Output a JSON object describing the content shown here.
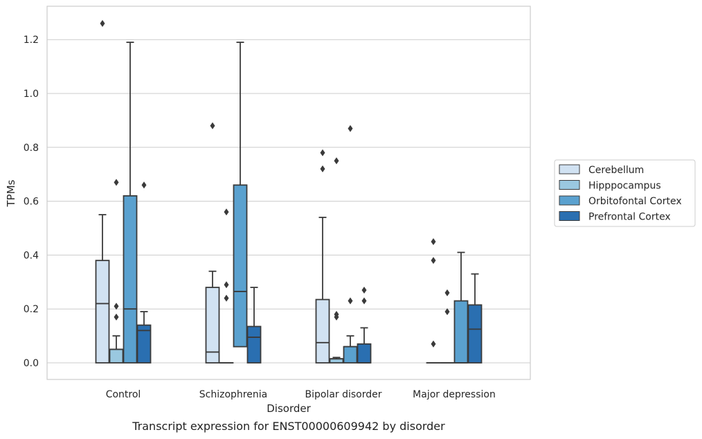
{
  "caption": "Transcript expression for ENST00000609942 by disorder",
  "colors": {
    "Cerebellum": "#d1e2f2",
    "Hipppocampus": "#9ac8e0",
    "Orbitofontal Cortex": "#5aa1cf",
    "Prefrontal Cortex": "#2a6fb1",
    "line": "#3a3a3a",
    "grid": "#cccccc",
    "frame": "#cccccc"
  },
  "chart_data": {
    "type": "box",
    "xlabel": "Disorder",
    "ylabel": "TPMs",
    "ylim": [
      -0.06,
      1.32
    ],
    "yticks": [
      0.0,
      0.2,
      0.4,
      0.6,
      0.8,
      1.0,
      1.2
    ],
    "ytick_labels": [
      "0.0",
      "0.2",
      "0.4",
      "0.6",
      "0.8",
      "1.0",
      "1.2"
    ],
    "grid": "horizontal",
    "legend_placement": "right-outside",
    "categories": [
      "Control",
      "Schizophrenia",
      "Bipolar disorder",
      "Major depression"
    ],
    "series": [
      {
        "name": "Cerebellum",
        "boxes": [
          {
            "whislo": 0.0,
            "q1": 0.0,
            "med": 0.22,
            "q3": 0.38,
            "whishi": 0.55,
            "fliers": [
              1.26
            ]
          },
          {
            "whislo": 0.0,
            "q1": 0.0,
            "med": 0.04,
            "q3": 0.28,
            "whishi": 0.34,
            "fliers": [
              0.88
            ]
          },
          {
            "whislo": 0.0,
            "q1": 0.0,
            "med": 0.075,
            "q3": 0.235,
            "whishi": 0.54,
            "fliers": [
              0.72,
              0.78
            ]
          },
          {
            "whislo": 0.0,
            "q1": 0.0,
            "med": 0.0,
            "q3": 0.0,
            "whishi": 0.0,
            "fliers": [
              0.07,
              0.38,
              0.45
            ]
          }
        ]
      },
      {
        "name": "Hipppocampus",
        "boxes": [
          {
            "whislo": 0.0,
            "q1": 0.0,
            "med": 0.05,
            "q3": 0.05,
            "whishi": 0.1,
            "fliers": [
              0.17,
              0.21,
              0.67
            ]
          },
          {
            "whislo": 0.0,
            "q1": 0.0,
            "med": 0.0,
            "q3": 0.0,
            "whishi": 0.0,
            "fliers": [
              0.24,
              0.29,
              0.56
            ]
          },
          {
            "whislo": 0.0,
            "q1": 0.0,
            "med": 0.015,
            "q3": 0.015,
            "whishi": 0.02,
            "fliers": [
              0.17,
              0.18,
              0.75
            ]
          },
          {
            "whislo": 0.0,
            "q1": 0.0,
            "med": 0.0,
            "q3": 0.0,
            "whishi": 0.0,
            "fliers": [
              0.19,
              0.26
            ]
          }
        ]
      },
      {
        "name": "Orbitofontal Cortex",
        "boxes": [
          {
            "whislo": 0.0,
            "q1": 0.0,
            "med": 0.2,
            "q3": 0.62,
            "whishi": 1.19,
            "fliers": []
          },
          {
            "whislo": 0.0,
            "q1": 0.06,
            "med": 0.265,
            "q3": 0.66,
            "whishi": 1.19,
            "fliers": []
          },
          {
            "whislo": 0.0,
            "q1": 0.0,
            "med": 0.06,
            "q3": 0.06,
            "whishi": 0.1,
            "fliers": [
              0.23,
              0.87
            ]
          },
          {
            "whislo": 0.0,
            "q1": 0.0,
            "med": 0.0,
            "q3": 0.23,
            "whishi": 0.41,
            "fliers": []
          }
        ]
      },
      {
        "name": "Prefrontal Cortex",
        "boxes": [
          {
            "whislo": 0.0,
            "q1": 0.0,
            "med": 0.12,
            "q3": 0.14,
            "whishi": 0.19,
            "fliers": [
              0.66
            ]
          },
          {
            "whislo": 0.0,
            "q1": 0.0,
            "med": 0.095,
            "q3": 0.135,
            "whishi": 0.28,
            "fliers": []
          },
          {
            "whislo": 0.0,
            "q1": 0.0,
            "med": 0.0,
            "q3": 0.07,
            "whishi": 0.13,
            "fliers": [
              0.23,
              0.27
            ]
          },
          {
            "whislo": 0.0,
            "q1": 0.0,
            "med": 0.125,
            "q3": 0.215,
            "whishi": 0.33,
            "fliers": []
          }
        ]
      }
    ]
  }
}
